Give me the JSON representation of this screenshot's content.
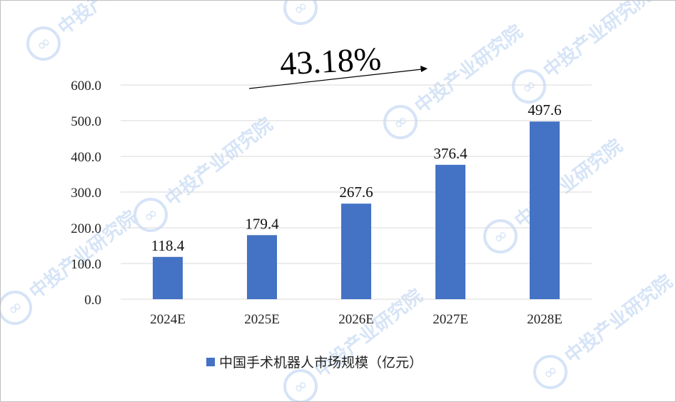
{
  "chart_data": {
    "type": "bar",
    "categories": [
      "2024E",
      "2025E",
      "2026E",
      "2027E",
      "2028E"
    ],
    "series": [
      {
        "name": "中国手术机器人市场规模（亿元）",
        "values": [
          118.4,
          179.4,
          267.6,
          376.4,
          497.6
        ],
        "labels": [
          "118.4",
          "179.4",
          "267.6",
          "376.4",
          "497.6"
        ],
        "color": "#4472c4"
      }
    ],
    "ylim": [
      0,
      600
    ],
    "yticks": [
      "0.0",
      "100.0",
      "200.0",
      "300.0",
      "400.0",
      "500.0",
      "600.0"
    ],
    "grid": true,
    "legend_position": "bottom",
    "annotation": "43.18%",
    "gridline_color": "#d9d9d9"
  },
  "watermark": {
    "text": "中投产业研究院",
    "logo_glyph": "∞",
    "color": "#d6e4f7"
  }
}
